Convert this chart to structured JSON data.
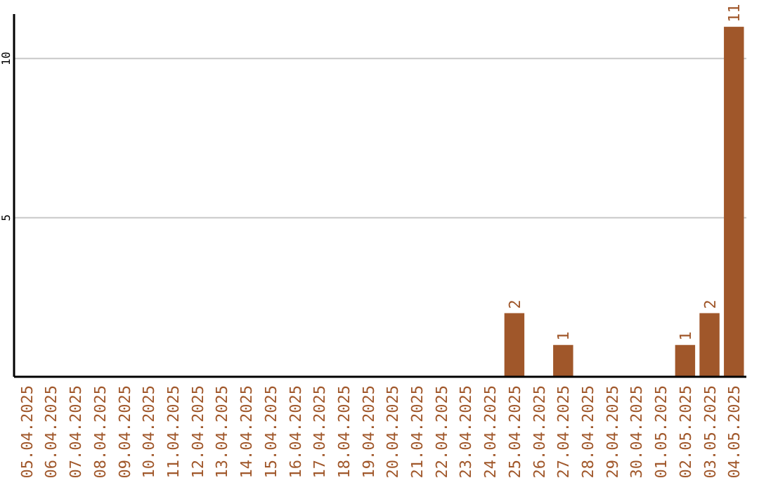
{
  "chart_data": {
    "type": "bar",
    "categories": [
      "05.04.2025",
      "06.04.2025",
      "07.04.2025",
      "08.04.2025",
      "09.04.2025",
      "10.04.2025",
      "11.04.2025",
      "12.04.2025",
      "13.04.2025",
      "14.04.2025",
      "15.04.2025",
      "16.04.2025",
      "17.04.2025",
      "18.04.2025",
      "19.04.2025",
      "20.04.2025",
      "21.04.2025",
      "22.04.2025",
      "23.04.2025",
      "24.04.2025",
      "25.04.2025",
      "26.04.2025",
      "27.04.2025",
      "28.04.2025",
      "29.04.2025",
      "30.04.2025",
      "01.05.2025",
      "02.05.2025",
      "03.05.2025",
      "04.05.2025"
    ],
    "values": [
      0,
      0,
      0,
      0,
      0,
      0,
      0,
      0,
      0,
      0,
      0,
      0,
      0,
      0,
      0,
      0,
      0,
      0,
      0,
      0,
      2,
      0,
      1,
      0,
      0,
      0,
      0,
      1,
      2,
      11
    ],
    "value_labels": [
      null,
      null,
      null,
      null,
      null,
      null,
      null,
      null,
      null,
      null,
      null,
      null,
      null,
      null,
      null,
      null,
      null,
      null,
      null,
      null,
      "2",
      null,
      "1",
      null,
      null,
      null,
      null,
      "1",
      "2",
      "11"
    ],
    "color": "#a0572a",
    "ylim": [
      0,
      11.4
    ],
    "yticks": [
      5,
      10
    ],
    "grid": "y"
  }
}
